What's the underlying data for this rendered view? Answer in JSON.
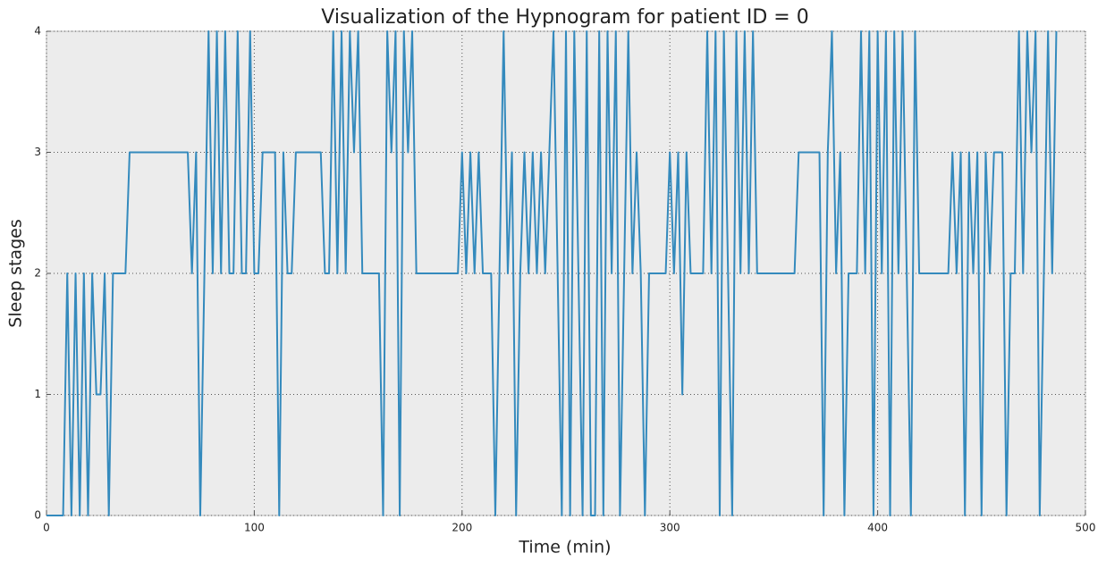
{
  "chart_data": {
    "type": "line",
    "title": "Visualization of the Hypnogram for patient ID = 0",
    "xlabel": "Time (min)",
    "ylabel": "Sleep stages",
    "grid": true,
    "xlim": [
      0,
      500
    ],
    "xticks": [
      0,
      100,
      200,
      300,
      400,
      500
    ],
    "ylim": [
      0,
      4
    ],
    "yticks": [
      0,
      1,
      2,
      3,
      4
    ],
    "x": [
      0,
      2,
      4,
      6,
      8,
      10,
      12,
      14,
      16,
      18,
      20,
      22,
      24,
      26,
      28,
      30,
      32,
      34,
      36,
      38,
      40,
      42,
      44,
      46,
      48,
      50,
      52,
      54,
      56,
      58,
      60,
      62,
      64,
      66,
      68,
      70,
      72,
      74,
      76,
      78,
      80,
      82,
      84,
      86,
      88,
      90,
      92,
      94,
      96,
      98,
      100,
      102,
      104,
      106,
      108,
      110,
      112,
      114,
      116,
      118,
      120,
      122,
      124,
      126,
      128,
      130,
      132,
      134,
      136,
      138,
      140,
      142,
      144,
      146,
      148,
      150,
      152,
      154,
      156,
      158,
      160,
      162,
      164,
      166,
      168,
      170,
      172,
      174,
      176,
      178,
      180,
      182,
      184,
      186,
      188,
      190,
      192,
      194,
      196,
      198,
      200,
      202,
      204,
      206,
      208,
      210,
      212,
      214,
      216,
      218,
      220,
      222,
      224,
      226,
      228,
      230,
      232,
      234,
      236,
      238,
      240,
      242,
      244,
      246,
      248,
      250,
      252,
      254,
      256,
      258,
      260,
      262,
      264,
      266,
      268,
      270,
      272,
      274,
      276,
      278,
      280,
      282,
      284,
      286,
      288,
      290,
      292,
      294,
      296,
      298,
      300,
      302,
      304,
      306,
      308,
      310,
      312,
      314,
      316,
      318,
      320,
      322,
      324,
      326,
      328,
      330,
      332,
      334,
      336,
      338,
      340,
      342,
      344,
      346,
      348,
      350,
      352,
      354,
      356,
      358,
      360,
      362,
      364,
      366,
      368,
      370,
      372,
      374,
      376,
      378,
      380,
      382,
      384,
      386,
      388,
      390,
      392,
      394,
      396,
      398,
      400,
      402,
      404,
      406,
      408,
      410,
      412,
      414,
      416,
      418,
      420,
      422,
      424,
      426,
      428,
      430,
      432,
      434,
      436,
      438,
      440,
      442,
      444,
      446,
      448,
      450,
      452,
      454,
      456,
      458,
      460,
      462,
      464,
      466,
      468,
      470,
      472,
      474,
      476,
      478,
      480,
      482,
      484,
      486
    ],
    "series": [
      {
        "color": "#348abd",
        "values": [
          0,
          0,
          0,
          0,
          0,
          2,
          0,
          2,
          0,
          2,
          0,
          2,
          1,
          1,
          2,
          0,
          2,
          2,
          2,
          2,
          3,
          3,
          3,
          3,
          3,
          3,
          3,
          3,
          3,
          3,
          3,
          3,
          3,
          3,
          3,
          2,
          3,
          0,
          2,
          4,
          2,
          4,
          2,
          4,
          2,
          2,
          4,
          2,
          2,
          4,
          2,
          2,
          3,
          3,
          3,
          3,
          0,
          3,
          2,
          2,
          3,
          3,
          3,
          3,
          3,
          3,
          3,
          2,
          2,
          4,
          2,
          4,
          2,
          4,
          3,
          4,
          2,
          2,
          2,
          2,
          2,
          0,
          4,
          3,
          4,
          0,
          4,
          3,
          4,
          2,
          2,
          2,
          2,
          2,
          2,
          2,
          2,
          2,
          2,
          2,
          3,
          2,
          3,
          2,
          3,
          2,
          2,
          2,
          0,
          2,
          4,
          2,
          3,
          0,
          2,
          3,
          2,
          3,
          2,
          3,
          2,
          3,
          4,
          2,
          0,
          4,
          0,
          4,
          2,
          0,
          4,
          0,
          0,
          4,
          0,
          4,
          2,
          4,
          0,
          2,
          4,
          2,
          3,
          2,
          0,
          2,
          2,
          2,
          2,
          2,
          3,
          2,
          3,
          1,
          3,
          2,
          2,
          2,
          2,
          4,
          2,
          4,
          0,
          4,
          2,
          0,
          4,
          2,
          4,
          2,
          4,
          2,
          2,
          2,
          2,
          2,
          2,
          2,
          2,
          2,
          2,
          3,
          3,
          3,
          3,
          3,
          3,
          0,
          3,
          4,
          2,
          3,
          0,
          2,
          2,
          2,
          4,
          2,
          4,
          0,
          4,
          2,
          4,
          0,
          4,
          2,
          4,
          2,
          0,
          4,
          2,
          2,
          2,
          2,
          2,
          2,
          2,
          2,
          3,
          2,
          3,
          0,
          3,
          2,
          3,
          0,
          3,
          2,
          3,
          3,
          3,
          0,
          2,
          2,
          4,
          2,
          4,
          3,
          4,
          0,
          2,
          4,
          2,
          4
        ]
      }
    ]
  }
}
